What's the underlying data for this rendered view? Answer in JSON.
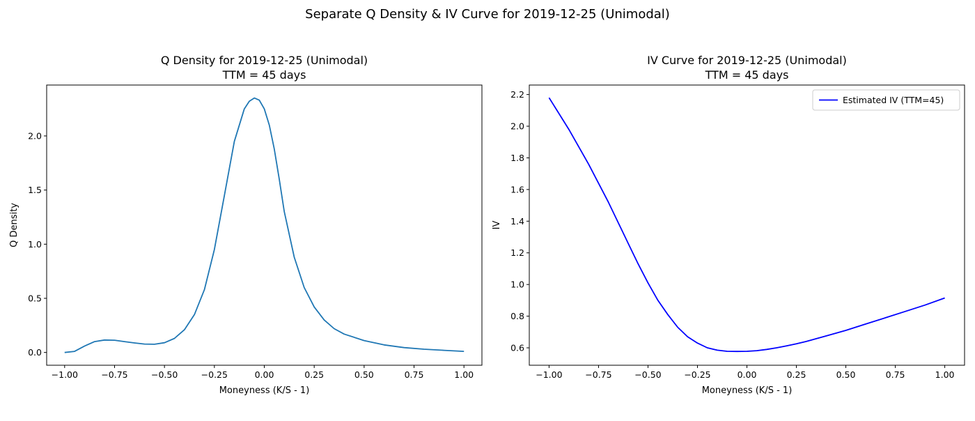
{
  "figure": {
    "suptitle": "Separate Q Density & IV Curve for 2019-12-25 (Unimodal)"
  },
  "chart_data": [
    {
      "type": "line",
      "title": "Q Density for 2019-12-25 (Unimodal)",
      "subtitle": "TTM = 45 days",
      "xlabel": "Moneyness (K/S - 1)",
      "ylabel": "Q Density",
      "xlim": [
        -1.09,
        1.09
      ],
      "ylim": [
        -0.118,
        2.47
      ],
      "xticks": [
        -1.0,
        -0.75,
        -0.5,
        -0.25,
        0.0,
        0.25,
        0.5,
        0.75,
        1.0
      ],
      "xtick_labels": [
        "−1.00",
        "−0.75",
        "−0.50",
        "−0.25",
        "0.00",
        "0.25",
        "0.50",
        "0.75",
        "1.00"
      ],
      "yticks": [
        0.0,
        0.5,
        1.0,
        1.5,
        2.0
      ],
      "ytick_labels": [
        "0.0",
        "0.5",
        "1.0",
        "1.5",
        "2.0"
      ],
      "grid": false,
      "legend": null,
      "series": [
        {
          "color": "#1f77b4",
          "x": [
            -1.0,
            -0.95,
            -0.9,
            -0.85,
            -0.8,
            -0.75,
            -0.7,
            -0.65,
            -0.6,
            -0.55,
            -0.5,
            -0.45,
            -0.4,
            -0.35,
            -0.3,
            -0.25,
            -0.2,
            -0.15,
            -0.1,
            -0.075,
            -0.05,
            -0.025,
            0.0,
            0.025,
            0.05,
            0.075,
            0.1,
            0.15,
            0.2,
            0.25,
            0.3,
            0.35,
            0.4,
            0.5,
            0.6,
            0.7,
            0.8,
            0.9,
            1.0
          ],
          "y": [
            0.0,
            0.01,
            0.06,
            0.1,
            0.115,
            0.113,
            0.1,
            0.088,
            0.078,
            0.076,
            0.09,
            0.13,
            0.21,
            0.35,
            0.58,
            0.95,
            1.45,
            1.95,
            2.25,
            2.32,
            2.35,
            2.33,
            2.25,
            2.1,
            1.88,
            1.6,
            1.3,
            0.88,
            0.6,
            0.42,
            0.3,
            0.22,
            0.17,
            0.11,
            0.07,
            0.045,
            0.03,
            0.02,
            0.01
          ]
        }
      ]
    },
    {
      "type": "line",
      "title": "IV Curve for 2019-12-25 (Unimodal)",
      "subtitle": "TTM = 45 days",
      "xlabel": "Moneyness (K/S - 1)",
      "ylabel": "IV",
      "xlim": [
        -1.1,
        1.1
      ],
      "ylim": [
        0.49,
        2.26
      ],
      "xticks": [
        -1.0,
        -0.75,
        -0.5,
        -0.25,
        0.0,
        0.25,
        0.5,
        0.75,
        1.0
      ],
      "xtick_labels": [
        "−1.00",
        "−0.75",
        "−0.50",
        "−0.25",
        "0.00",
        "0.25",
        "0.50",
        "0.75",
        "1.00"
      ],
      "yticks": [
        0.6,
        0.8,
        1.0,
        1.2,
        1.4,
        1.6,
        1.8,
        2.0,
        2.2
      ],
      "ytick_labels": [
        "0.6",
        "0.8",
        "1.0",
        "1.2",
        "1.4",
        "1.6",
        "1.8",
        "2.0",
        "2.2"
      ],
      "grid": false,
      "legend": "top-right",
      "series": [
        {
          "name": "Estimated IV (TTM=45)",
          "color": "#0000ff",
          "x": [
            -1.0,
            -0.95,
            -0.9,
            -0.85,
            -0.8,
            -0.75,
            -0.7,
            -0.65,
            -0.6,
            -0.55,
            -0.5,
            -0.45,
            -0.4,
            -0.35,
            -0.3,
            -0.25,
            -0.2,
            -0.15,
            -0.1,
            -0.05,
            0.0,
            0.05,
            0.1,
            0.15,
            0.2,
            0.25,
            0.3,
            0.4,
            0.5,
            0.6,
            0.7,
            0.8,
            0.9,
            1.0
          ],
          "y": [
            2.18,
            2.08,
            1.98,
            1.87,
            1.76,
            1.64,
            1.52,
            1.39,
            1.26,
            1.13,
            1.01,
            0.9,
            0.81,
            0.73,
            0.67,
            0.63,
            0.6,
            0.585,
            0.578,
            0.577,
            0.578,
            0.582,
            0.59,
            0.6,
            0.612,
            0.625,
            0.64,
            0.675,
            0.71,
            0.75,
            0.79,
            0.83,
            0.87,
            0.915
          ]
        }
      ]
    }
  ]
}
